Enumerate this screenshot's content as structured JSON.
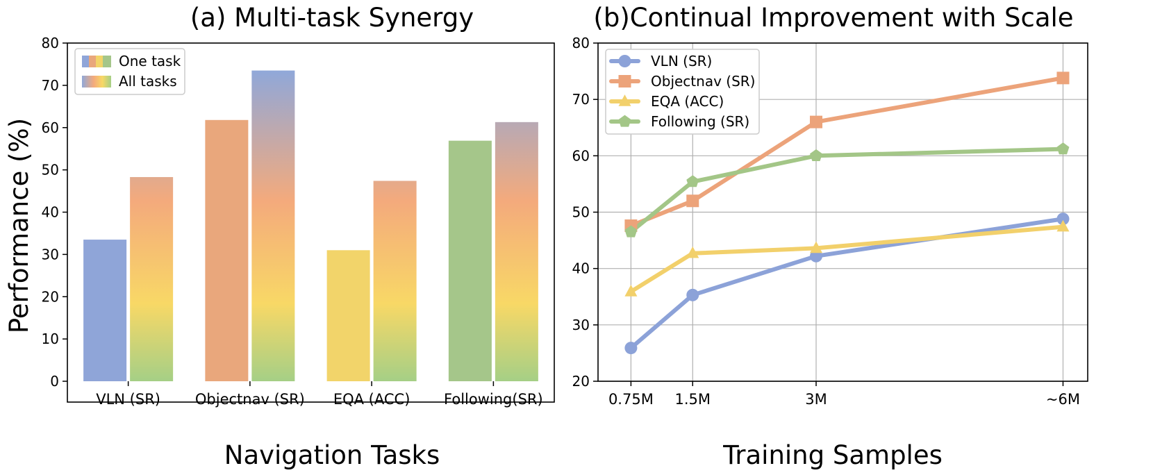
{
  "chart_data": [
    {
      "type": "bar",
      "title": "(a) Multi-task Synergy",
      "xlabel": "Navigation Tasks",
      "ylabel": "Performance (%)",
      "ylim": [
        0,
        80
      ],
      "yticks": [
        0,
        10,
        20,
        30,
        40,
        50,
        60,
        70,
        80
      ],
      "categories": [
        "VLN (SR)",
        "Objectnav (SR)",
        "EQA (ACC)",
        "Following(SR)"
      ],
      "series": [
        {
          "name": "One task",
          "values": [
            33.5,
            61.8,
            31.0,
            56.9
          ]
        },
        {
          "name": "All tasks",
          "values": [
            48.3,
            73.5,
            47.4,
            61.3
          ]
        }
      ],
      "category_colors": [
        "#8fa5d8",
        "#e9a77c",
        "#f2d46a",
        "#a5c68a"
      ],
      "gradient_colors": [
        "#90a8d9",
        "#f4aa7c",
        "#f8d866",
        "#a5cf86"
      ],
      "legend": "top-left",
      "grid": false
    },
    {
      "type": "line",
      "title": "(b)Continual Improvement with Scale",
      "xlabel": "Training Samples",
      "ylabel": "",
      "x": [
        0.75,
        1.5,
        3,
        6
      ],
      "xtick_labels": [
        "0.75M",
        "1.5M",
        "3M",
        "~6M"
      ],
      "ylim": [
        20,
        80
      ],
      "yticks": [
        20,
        30,
        40,
        50,
        60,
        70,
        80
      ],
      "grid": true,
      "legend": "top-left",
      "series": [
        {
          "name": "VLN (SR)",
          "values": [
            25.9,
            35.3,
            42.2,
            48.8
          ],
          "color": "#8ca2d8",
          "marker": "circle"
        },
        {
          "name": "Objectnav (SR)",
          "values": [
            47.6,
            52.0,
            66.0,
            73.8
          ],
          "color": "#eca37a",
          "marker": "square"
        },
        {
          "name": "EQA (ACC)",
          "values": [
            35.9,
            42.7,
            43.6,
            47.4
          ],
          "color": "#f2d06b",
          "marker": "triangle"
        },
        {
          "name": "Following (SR)",
          "values": [
            46.5,
            55.4,
            60.0,
            61.2
          ],
          "color": "#a3c687",
          "marker": "pentagon"
        }
      ]
    }
  ]
}
